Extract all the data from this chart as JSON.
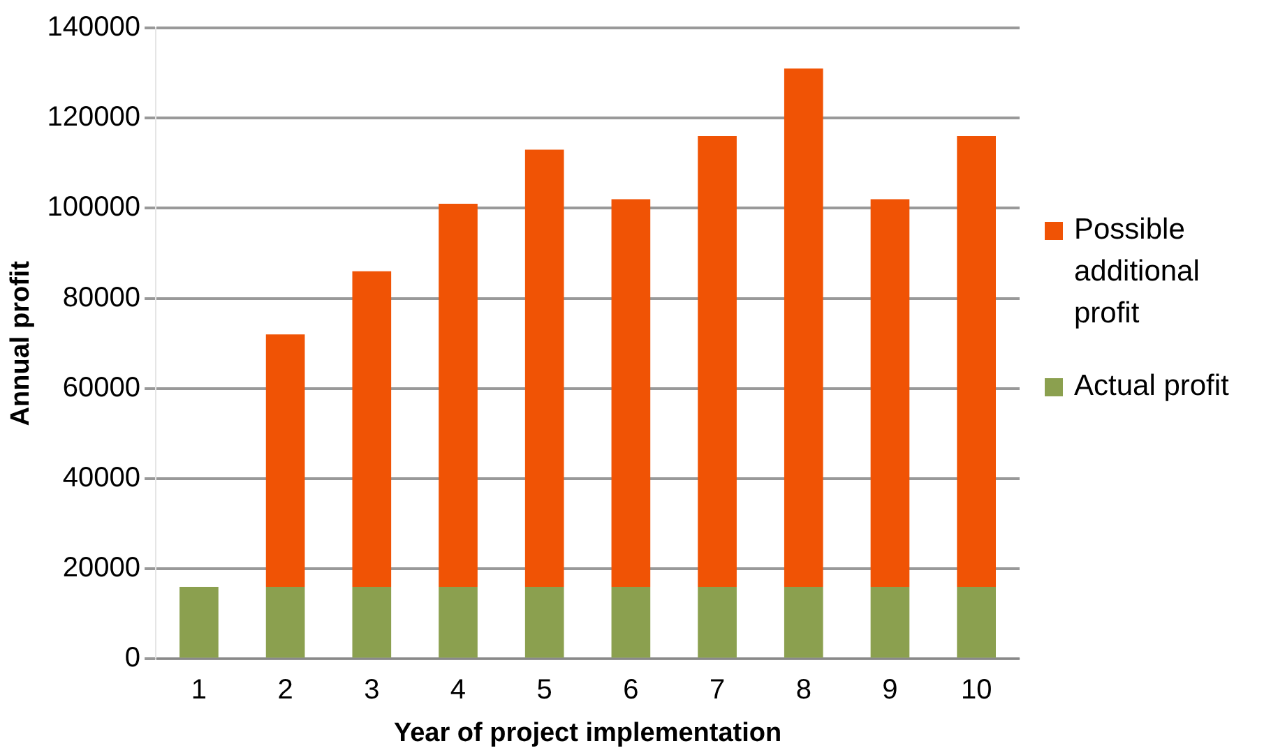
{
  "chart_data": {
    "type": "bar",
    "stacked": true,
    "xlabel": "Year of project implementation",
    "ylabel": "Annual profit",
    "categories": [
      "1",
      "2",
      "3",
      "4",
      "5",
      "6",
      "7",
      "8",
      "9",
      "10"
    ],
    "series": [
      {
        "name": "Actual profit",
        "color": "#8ba04f",
        "values": [
          16000,
          16000,
          16000,
          16000,
          16000,
          16000,
          16000,
          16000,
          16000,
          16000
        ]
      },
      {
        "name": "Possible additional profit",
        "color": "#f05305",
        "values": [
          0,
          56000,
          70000,
          85000,
          97000,
          86000,
          100000,
          115000,
          86000,
          100000
        ]
      }
    ],
    "ylim": [
      0,
      140000
    ],
    "yticks": [
      0,
      20000,
      40000,
      60000,
      80000,
      100000,
      120000,
      140000
    ],
    "grid": "y",
    "legend": "right"
  }
}
